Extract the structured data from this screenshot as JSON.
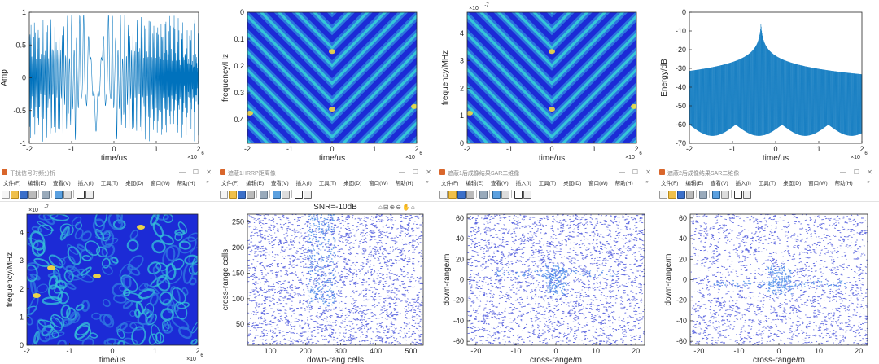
{
  "panels": {
    "p1": {
      "xlabel": "time/us",
      "ylabel": "Amp",
      "exp": "6",
      "xticks": [
        "-2",
        "-1",
        "0",
        "1",
        "2"
      ],
      "yticks": [
        "1",
        "0.5",
        "0",
        "-0.5",
        "-1"
      ]
    },
    "p2": {
      "xlabel": "time/us",
      "ylabel": "frequency/Hz",
      "exp": "6",
      "xticks": [
        "-2",
        "-1",
        "0",
        "1",
        "2"
      ],
      "yticks": [
        "0",
        "0.1",
        "0.2",
        "0.3",
        "0.4"
      ]
    },
    "p3": {
      "xlabel": "time/us",
      "ylabel": "frequency/MHz",
      "ymul": "×10",
      "ymulexp": "-7",
      "exp": "6",
      "xticks": [
        "-2",
        "-1",
        "0",
        "1",
        "2"
      ],
      "yticks": [
        "4",
        "3",
        "2",
        "1",
        "0"
      ]
    },
    "p4": {
      "xlabel": "time/us",
      "ylabel": "Energy/dB",
      "exp": "6",
      "xticks": [
        "-2",
        "-1",
        "0",
        "1",
        "2"
      ],
      "yticks": [
        "0",
        "-10",
        "-20",
        "-30",
        "-40",
        "-50",
        "-60",
        "-70"
      ]
    },
    "p5": {
      "xlabel": "time/us",
      "ylabel": "frequency/MHz",
      "ymul": "×10",
      "ymulexp": "-7",
      "exp": "6",
      "xticks": [
        "-2",
        "-1",
        "0",
        "1",
        "2"
      ],
      "yticks": [
        "4",
        "3",
        "2",
        "1",
        "0"
      ]
    },
    "p6": {
      "title": "SNR=-10dB",
      "xlabel": "down-rang cells",
      "ylabel": "cross-range cells",
      "xticks": [
        "100",
        "200",
        "300",
        "400",
        "500"
      ],
      "yticks": [
        "250",
        "200",
        "150",
        "100",
        "50"
      ]
    },
    "p7": {
      "xlabel": "cross-range/m",
      "ylabel": "down-range/m",
      "xticks": [
        "-20",
        "-10",
        "0",
        "10",
        "20"
      ],
      "yticks": [
        "60",
        "40",
        "20",
        "0",
        "-20",
        "-40",
        "-60"
      ]
    },
    "p8": {
      "xlabel": "cross-range/m",
      "ylabel": "down-range/m",
      "xticks": [
        "-20",
        "-10",
        "0",
        "10",
        "20"
      ],
      "yticks": [
        "60",
        "40",
        "20",
        "0",
        "-20",
        "-40",
        "-60"
      ]
    }
  },
  "windows": {
    "w5": {
      "title": "干扰信号时频分析"
    },
    "w6": {
      "title": "遮蔽1HRRP距离像"
    },
    "w7": {
      "title": "遮蔽1后成像结果SAR二维像"
    },
    "w8": {
      "title": "遮蔽2后成像结果SAR二维像"
    }
  },
  "menu": {
    "items": [
      "文件(F)",
      "编辑(E)",
      "查看(V)",
      "插入(I)",
      "工具(T)",
      "桌面(D)",
      "窗口(W)",
      "帮助(H)"
    ]
  },
  "colors": {
    "plot_line": "#0072bd",
    "dark_blue": "#1c2bd6",
    "mid_blue": "#2f7de0",
    "cyan": "#35c6d8",
    "yellow": "#ffe23a",
    "scatter": "#2b38d6"
  }
}
